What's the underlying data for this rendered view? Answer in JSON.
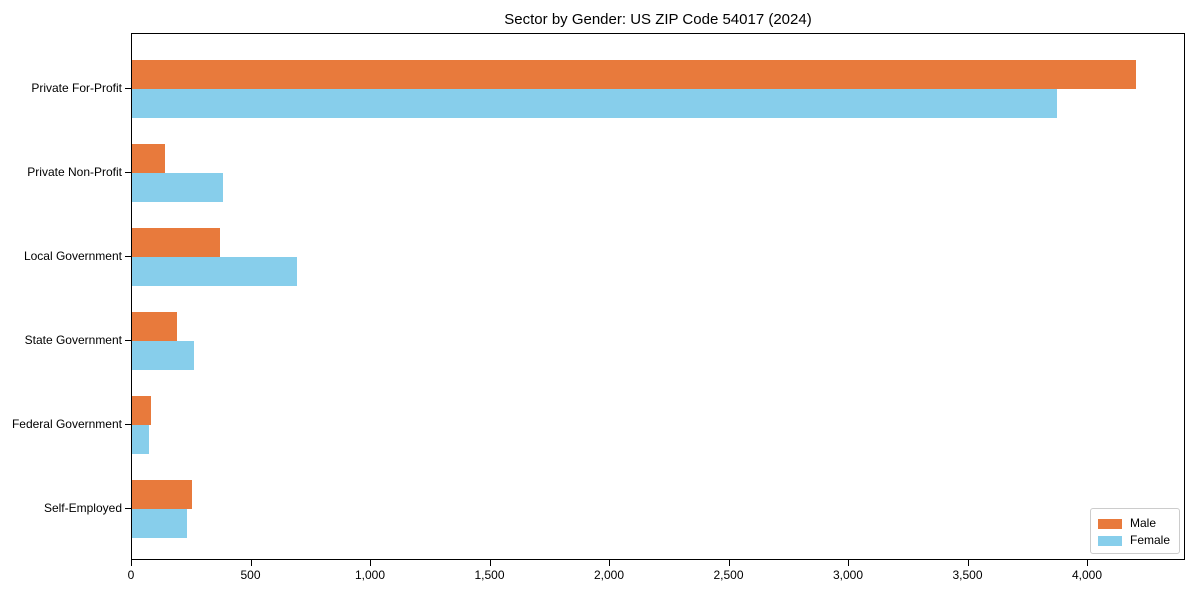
{
  "chart_data": {
    "type": "bar",
    "orientation": "horizontal",
    "title": "Sector by Gender: US ZIP Code 54017 (2024)",
    "categories": [
      "Private For-Profit",
      "Private Non-Profit",
      "Local Government",
      "State Government",
      "Federal Government",
      "Self-Employed"
    ],
    "series": [
      {
        "name": "Male",
        "color": "#e87a3c",
        "values": [
          4200,
          140,
          370,
          190,
          80,
          250
        ]
      },
      {
        "name": "Female",
        "color": "#87ceeb",
        "values": [
          3870,
          380,
          690,
          260,
          70,
          230
        ]
      }
    ],
    "xlabel": "",
    "ylabel": "",
    "xlim": [
      0,
      4410
    ],
    "x_tick_values": [
      0,
      500,
      1000,
      1500,
      2000,
      2500,
      3000,
      3500,
      4000
    ],
    "x_tick_labels": [
      "0",
      "500",
      "1,000",
      "1,500",
      "2,000",
      "2,500",
      "3,000",
      "3,500",
      "4,000"
    ],
    "grid": false,
    "legend_position": "lower right"
  },
  "legend": {
    "items": [
      {
        "label": "Male",
        "color": "#e87a3c"
      },
      {
        "label": "Female",
        "color": "#87ceeb"
      }
    ]
  }
}
